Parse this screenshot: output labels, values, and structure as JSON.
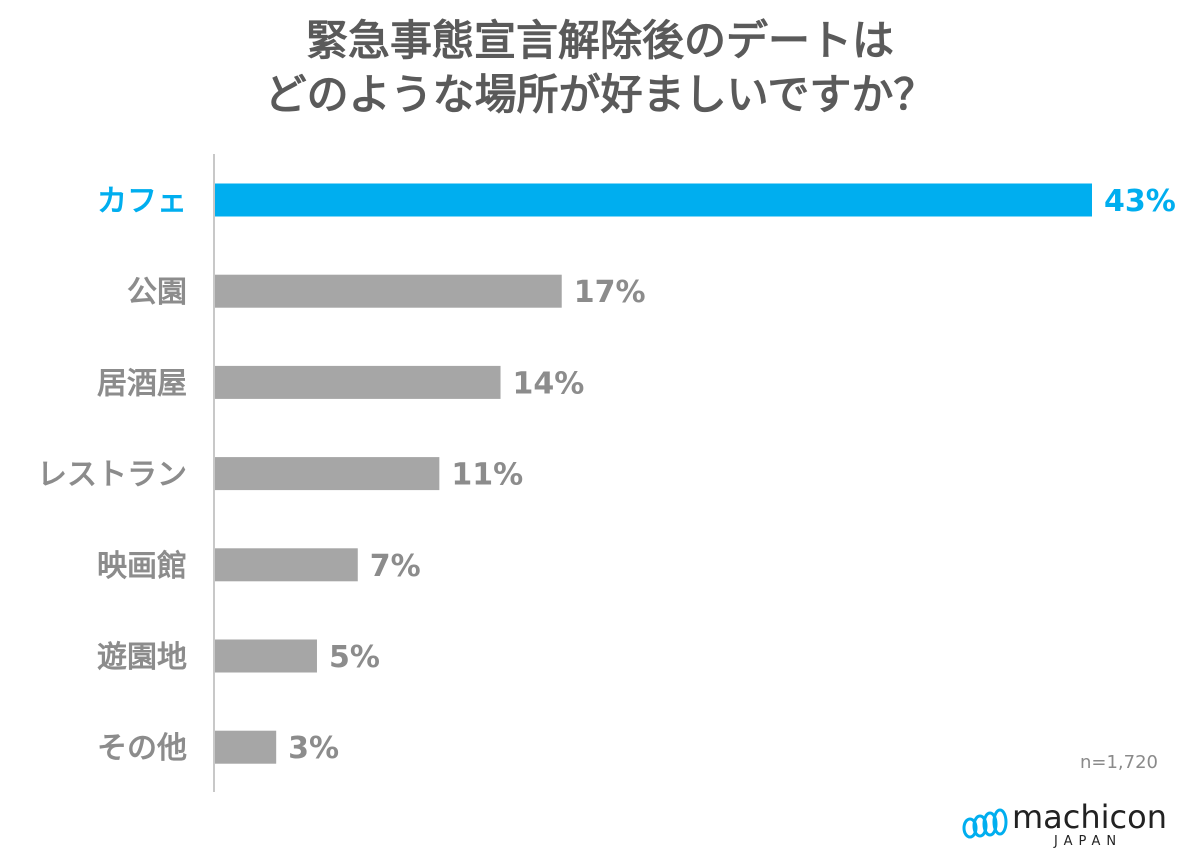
{
  "title": {
    "line1": "緊急事態宣言解除後のデートは",
    "line2": "どのような場所が好ましいですか？"
  },
  "note": "n=1,720",
  "logo": {
    "name": "machicon",
    "sub": "JAPAN"
  },
  "colors": {
    "highlight": "#00aeef",
    "bar": "#a6a6a6",
    "label": "#8c8c8c",
    "axis": "#c8c8c8"
  },
  "chart_data": {
    "type": "bar",
    "orientation": "horizontal",
    "categories": [
      "カフェ",
      "公園",
      "居酒屋",
      "レストラン",
      "映画館",
      "遊園地",
      "その他"
    ],
    "values": [
      43,
      17,
      14,
      11,
      7,
      5,
      3
    ],
    "value_labels": [
      "43%",
      "17%",
      "14%",
      "11%",
      "7%",
      "5%",
      "3%"
    ],
    "highlight_index": 0,
    "unit": "%",
    "xlim": [
      0,
      43
    ]
  }
}
